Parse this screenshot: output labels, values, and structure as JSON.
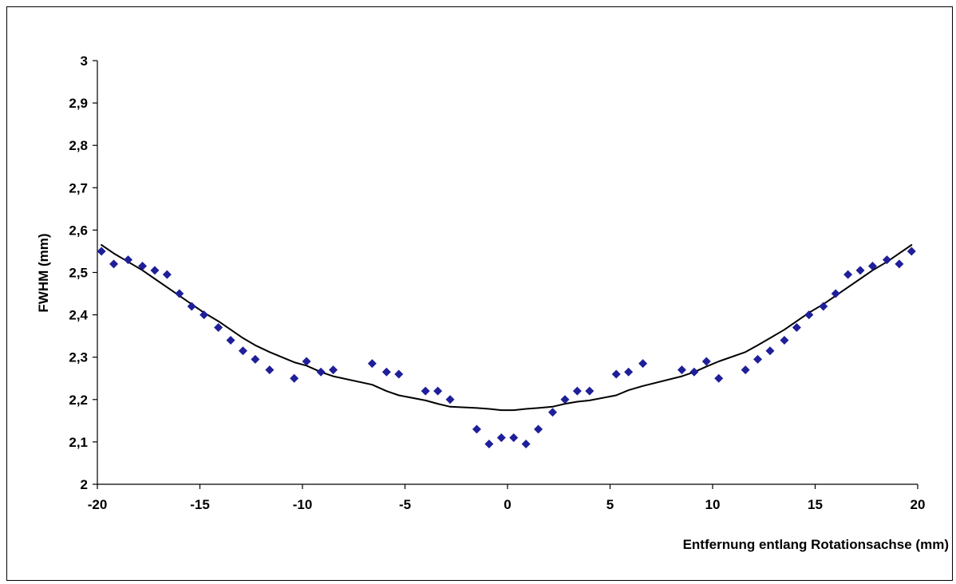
{
  "chart_data": {
    "type": "scatter",
    "title": "",
    "xlabel": "Entfernung entlang Rotationsachse (mm)",
    "ylabel": "FWHM (mm)",
    "xlim": [
      -20,
      20
    ],
    "ylim": [
      2,
      3
    ],
    "x_ticks": [
      "-20",
      "-15",
      "-10",
      "-5",
      "0",
      "5",
      "10",
      "15",
      "20"
    ],
    "y_ticks": [
      "2",
      "2,1",
      "2,2",
      "2,3",
      "2,4",
      "2,5",
      "2,6",
      "2,7",
      "2,8",
      "2,9",
      "3"
    ],
    "x_tick_values": [
      -20,
      -15,
      -10,
      -5,
      0,
      5,
      10,
      15,
      20
    ],
    "y_tick_values": [
      2,
      2.1,
      2.2,
      2.3,
      2.4,
      2.5,
      2.6,
      2.7,
      2.8,
      2.9,
      3
    ],
    "grid": false,
    "legend": "none",
    "colors": {
      "points": "#1f1f99",
      "trend": "#000000",
      "axis": "#000000"
    },
    "series": [
      {
        "kind": "points",
        "x": [
          -19.8,
          -19.2,
          -18.5,
          -17.8,
          -17.2,
          -16.6,
          -16.0,
          -15.4,
          -14.8,
          -14.1,
          -13.5,
          -12.9,
          -12.3,
          -11.6,
          -10.4,
          -9.8,
          -9.1,
          -8.5,
          -6.6,
          -5.9,
          -5.3,
          -4.0,
          -3.4,
          -2.8,
          -1.5,
          -0.9,
          -0.3,
          0.3,
          0.9,
          1.5,
          2.2,
          2.8,
          3.4,
          4.0,
          5.3,
          5.9,
          6.6,
          8.5,
          9.1,
          9.7,
          10.3,
          11.6,
          12.2,
          12.8,
          13.5,
          14.1,
          14.7,
          15.4,
          16.0,
          16.6,
          17.2,
          17.8,
          18.5,
          19.1,
          19.7
        ],
        "y": [
          2.55,
          2.52,
          2.53,
          2.515,
          2.505,
          2.495,
          2.45,
          2.42,
          2.4,
          2.37,
          2.34,
          2.315,
          2.295,
          2.27,
          2.25,
          2.29,
          2.265,
          2.27,
          2.285,
          2.265,
          2.26,
          2.22,
          2.22,
          2.2,
          2.13,
          2.095,
          2.11,
          2.11,
          2.095,
          2.13,
          2.17,
          2.2,
          2.22,
          2.22,
          2.26,
          2.265,
          2.285,
          2.27,
          2.265,
          2.29,
          2.25,
          2.27,
          2.295,
          2.315,
          2.34,
          2.37,
          2.4,
          2.42,
          2.45,
          2.495,
          2.505,
          2.515,
          2.53,
          2.52,
          2.55
        ]
      },
      {
        "kind": "trendline",
        "x": [
          -19.8,
          -19.2,
          -18.5,
          -17.8,
          -17.2,
          -16.6,
          -16.0,
          -15.4,
          -14.8,
          -14.1,
          -13.5,
          -12.9,
          -12.3,
          -11.6,
          -10.4,
          -9.8,
          -9.1,
          -8.5,
          -6.6,
          -5.9,
          -5.3,
          -4.0,
          -3.4,
          -2.8,
          -1.5,
          -0.9,
          -0.3,
          0.3,
          0.9,
          1.5,
          2.2,
          2.8,
          3.4,
          4.0,
          5.3,
          5.9,
          6.6,
          8.5,
          9.1,
          9.7,
          10.3,
          11.6,
          12.2,
          12.8,
          13.5,
          14.1,
          14.7,
          15.4,
          16.0,
          16.6,
          17.2,
          17.8,
          18.5,
          19.1,
          19.7
        ],
        "y": [
          2.565,
          2.545,
          2.525,
          2.505,
          2.485,
          2.465,
          2.445,
          2.425,
          2.405,
          2.385,
          2.365,
          2.345,
          2.328,
          2.312,
          2.288,
          2.28,
          2.265,
          2.255,
          2.235,
          2.22,
          2.21,
          2.198,
          2.19,
          2.183,
          2.18,
          2.178,
          2.175,
          2.175,
          2.178,
          2.18,
          2.183,
          2.19,
          2.195,
          2.198,
          2.21,
          2.222,
          2.232,
          2.255,
          2.265,
          2.278,
          2.29,
          2.312,
          2.328,
          2.345,
          2.365,
          2.385,
          2.405,
          2.425,
          2.445,
          2.465,
          2.485,
          2.505,
          2.525,
          2.545,
          2.565
        ]
      }
    ]
  }
}
